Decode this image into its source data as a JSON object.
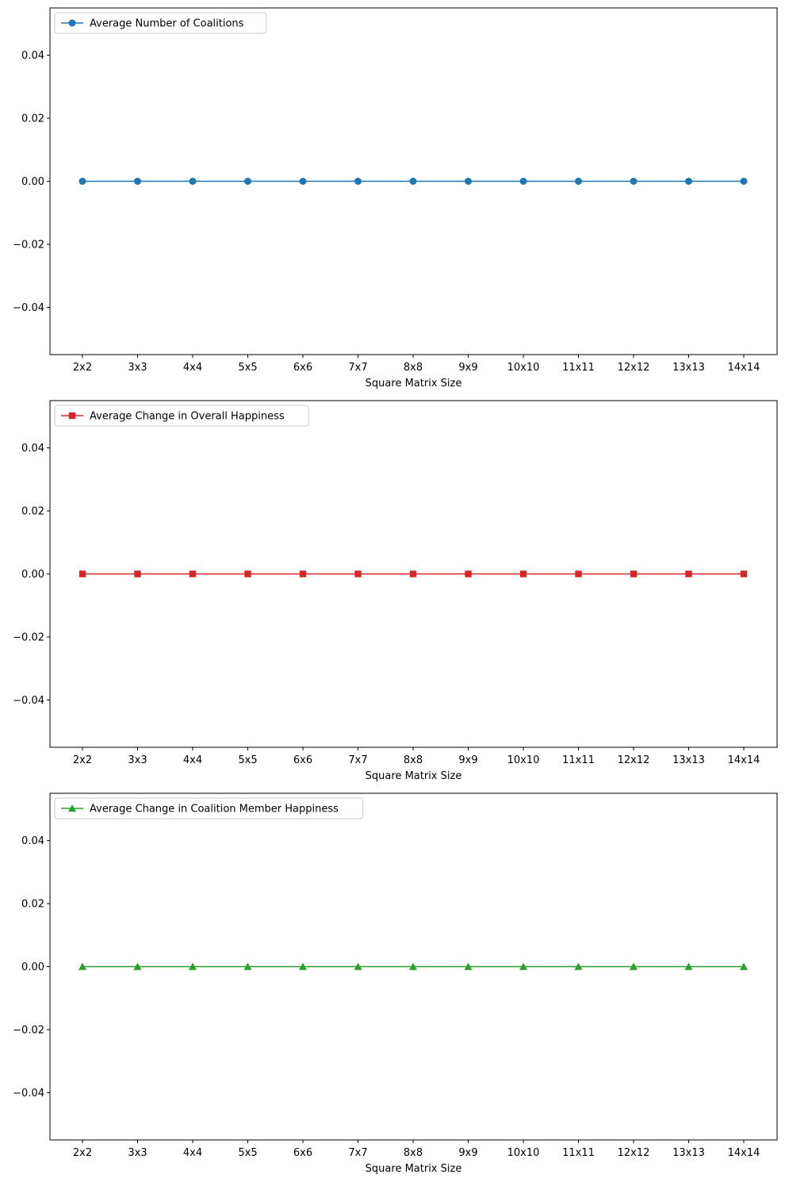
{
  "chart_data": [
    {
      "type": "line",
      "categories": [
        "2x2",
        "3x3",
        "4x4",
        "5x5",
        "6x6",
        "7x7",
        "8x8",
        "9x9",
        "10x10",
        "11x11",
        "12x12",
        "13x13",
        "14x14"
      ],
      "series": [
        {
          "name": "Average Number of Coalitions",
          "values": [
            0,
            0,
            0,
            0,
            0,
            0,
            0,
            0,
            0,
            0,
            0,
            0,
            0
          ],
          "color": "#1f77b4",
          "marker": "circle"
        }
      ],
      "title": "",
      "xlabel": "Square Matrix Size",
      "ylabel": "",
      "ylim": [
        -0.055,
        0.055
      ],
      "yticks": [
        "−0.04",
        "−0.02",
        "0.00",
        "0.02",
        "0.04"
      ],
      "ytick_values": [
        -0.04,
        -0.02,
        0,
        0.02,
        0.04
      ],
      "grid": false,
      "legend": "top-left"
    },
    {
      "type": "line",
      "categories": [
        "2x2",
        "3x3",
        "4x4",
        "5x5",
        "6x6",
        "7x7",
        "8x8",
        "9x9",
        "10x10",
        "11x11",
        "12x12",
        "13x13",
        "14x14"
      ],
      "series": [
        {
          "name": "Average Change in Overall Happiness",
          "values": [
            0,
            0,
            0,
            0,
            0,
            0,
            0,
            0,
            0,
            0,
            0,
            0,
            0
          ],
          "color": "#d62728",
          "marker": "square"
        }
      ],
      "title": "",
      "xlabel": "Square Matrix Size",
      "ylabel": "",
      "ylim": [
        -0.055,
        0.055
      ],
      "yticks": [
        "−0.04",
        "−0.02",
        "0.00",
        "0.02",
        "0.04"
      ],
      "ytick_values": [
        -0.04,
        -0.02,
        0,
        0.02,
        0.04
      ],
      "grid": false,
      "legend": "top-left"
    },
    {
      "type": "line",
      "categories": [
        "2x2",
        "3x3",
        "4x4",
        "5x5",
        "6x6",
        "7x7",
        "8x8",
        "9x9",
        "10x10",
        "11x11",
        "12x12",
        "13x13",
        "14x14"
      ],
      "series": [
        {
          "name": "Average Change in Coalition Member Happiness",
          "values": [
            0,
            0,
            0,
            0,
            0,
            0,
            0,
            0,
            0,
            0,
            0,
            0,
            0
          ],
          "color": "#2ca02c",
          "marker": "triangle"
        }
      ],
      "title": "",
      "xlabel": "Square Matrix Size",
      "ylabel": "",
      "ylim": [
        -0.055,
        0.055
      ],
      "yticks": [
        "−0.04",
        "−0.02",
        "0.00",
        "0.02",
        "0.04"
      ],
      "ytick_values": [
        -0.04,
        -0.02,
        0,
        0.02,
        0.04
      ],
      "grid": false,
      "legend": "top-left"
    }
  ]
}
